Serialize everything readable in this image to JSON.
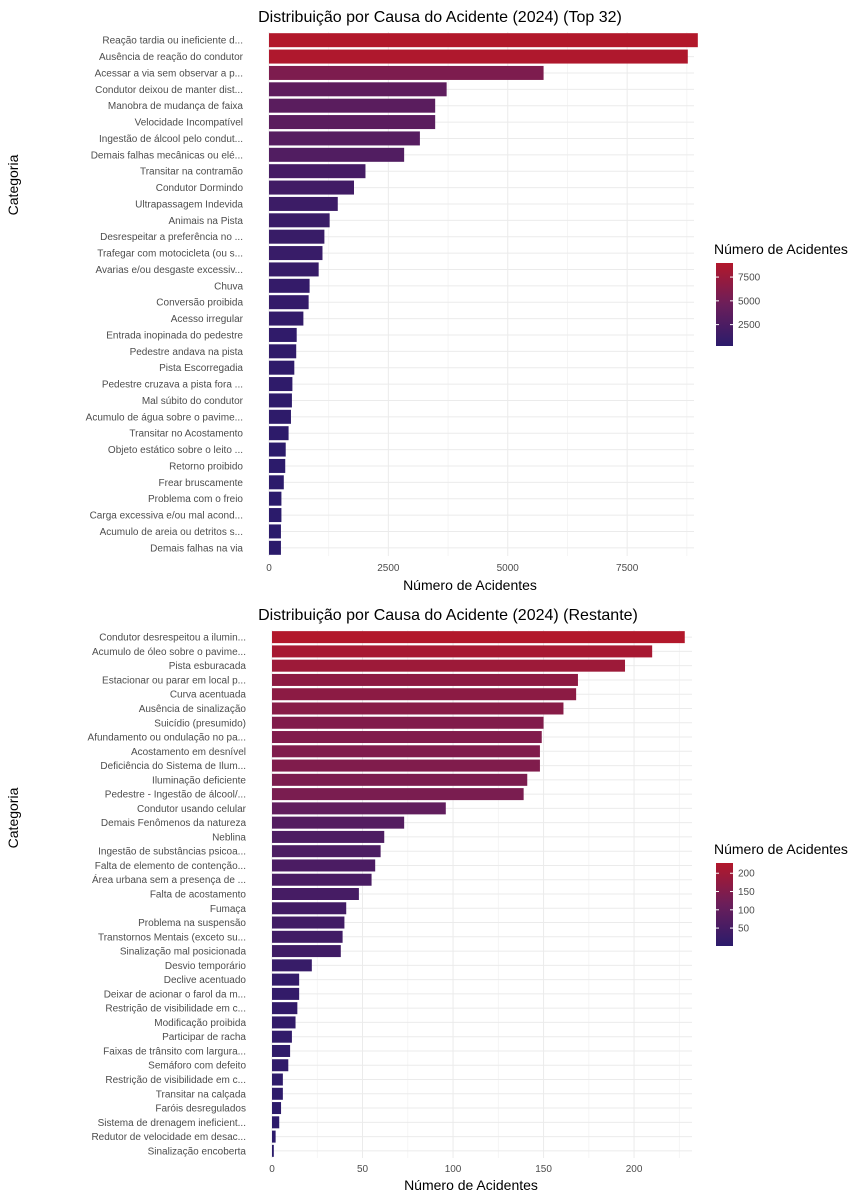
{
  "chart_data": [
    {
      "type": "bar",
      "orientation": "horizontal",
      "title": "Distribuição por Causa do Acidente (2024) (Top 32)",
      "xlabel": "Número de Acidentes",
      "ylabel": "Categoria",
      "xlim": [
        0,
        8900
      ],
      "xticks": [
        0,
        2500,
        5000,
        7500
      ],
      "xtick_labels": [
        "0",
        "2500",
        "5000",
        "7500"
      ],
      "grid": true,
      "legend": {
        "title": "Número de Acidentes",
        "placement": "right",
        "ticks": [
          2500,
          5000,
          7500
        ],
        "tick_labels": [
          "2500",
          "5000",
          "7500"
        ],
        "range": [
          250,
          8980
        ]
      },
      "colors": {
        "low": "#2b1b6b",
        "mid": "#6b1e5a",
        "high": "#b2182b"
      },
      "categories": [
        "Reação tardia ou ineficiente d...",
        "Ausência de reação do condutor",
        "Acessar a via sem observar a p...",
        "Condutor deixou de manter dist...",
        "Manobra de mudança de faixa",
        "Velocidade Incompatível",
        "Ingestão de álcool pelo condut...",
        "Demais falhas mecânicas ou elé...",
        "Transitar na contramão",
        "Condutor Dormindo",
        "Ultrapassagem Indevida",
        "Animais na Pista",
        "Desrespeitar a preferência no ...",
        "Trafegar com motocicleta (ou s...",
        "Avarias e/ou desgaste excessiv...",
        "Chuva",
        "Conversão proibida",
        "Acesso irregular",
        "Entrada inopinada do pedestre",
        "Pedestre andava na pista",
        "Pista Escorregadia",
        "Pedestre cruzava a pista fora ...",
        "Mal súbito do condutor",
        "Acumulo de água sobre o pavime...",
        "Transitar no Acostamento",
        "Objeto estático sobre o leito ...",
        "Retorno proibido",
        "Frear bruscamente",
        "Problema com o freio",
        "Carga excessiva e/ou mal acond...",
        "Acumulo de areia ou detritos s...",
        "Demais falhas na via"
      ],
      "values": [
        8980,
        8770,
        5750,
        3720,
        3480,
        3480,
        3160,
        2830,
        2020,
        1780,
        1440,
        1270,
        1160,
        1120,
        1040,
        850,
        830,
        720,
        580,
        570,
        530,
        490,
        480,
        460,
        410,
        350,
        340,
        310,
        260,
        260,
        250,
        250
      ]
    },
    {
      "type": "bar",
      "orientation": "horizontal",
      "title": "Distribuição por Causa do Acidente (2024) (Restante)",
      "xlabel": "Número de Acidentes",
      "ylabel": "Categoria",
      "xlim": [
        0,
        232
      ],
      "xticks": [
        0,
        50,
        100,
        150,
        200
      ],
      "xtick_labels": [
        "0",
        "50",
        "100",
        "150",
        "200"
      ],
      "grid": true,
      "legend": {
        "title": "Número de Acidentes",
        "placement": "right",
        "ticks": [
          50,
          100,
          150,
          200
        ],
        "tick_labels": [
          "50",
          "100",
          "150",
          "200"
        ],
        "range": [
          1,
          228
        ]
      },
      "colors": {
        "low": "#2b1b6b",
        "mid": "#6b1e5a",
        "high": "#b2182b"
      },
      "categories": [
        "Condutor desrespeitou a ilumin...",
        "Acumulo de óleo sobre o pavime...",
        "Pista esburacada",
        "Estacionar ou parar em local p...",
        "Curva acentuada",
        "Ausência de sinalização",
        "Suicídio (presumido)",
        "Afundamento ou ondulação no pa...",
        "Acostamento em desnível",
        "Deficiência do Sistema de Ilum...",
        "Iluminação deficiente",
        "Pedestre - Ingestão de álcool/...",
        "Condutor usando celular",
        "Demais Fenômenos da natureza",
        "Neblina",
        "Ingestão de substâncias psicoa...",
        "Falta de elemento de contenção...",
        "Área urbana sem a presença de ...",
        "Falta de acostamento",
        "Fumaça",
        "Problema na suspensão",
        "Transtornos Mentais (exceto su...",
        "Sinalização mal posicionada",
        "Desvio temporário",
        "Declive acentuado",
        "Deixar de acionar o farol da m...",
        "Restrição de visibilidade em c...",
        "Modificação proibida",
        "Participar de racha",
        "Faixas de trânsito com largura...",
        "Semáforo com defeito",
        "Restrição de visibilidade em c...",
        "Transitar na calçada",
        "Faróis desregulados",
        "Sistema de drenagem ineficient...",
        "Redutor de velocidade em desac...",
        "Sinalização encoberta"
      ],
      "values": [
        228,
        210,
        195,
        169,
        168,
        161,
        150,
        149,
        148,
        148,
        141,
        139,
        96,
        73,
        62,
        60,
        57,
        55,
        48,
        41,
        40,
        39,
        38,
        22,
        15,
        15,
        14,
        13,
        11,
        10,
        9,
        6,
        6,
        5,
        4,
        2,
        1
      ]
    }
  ]
}
